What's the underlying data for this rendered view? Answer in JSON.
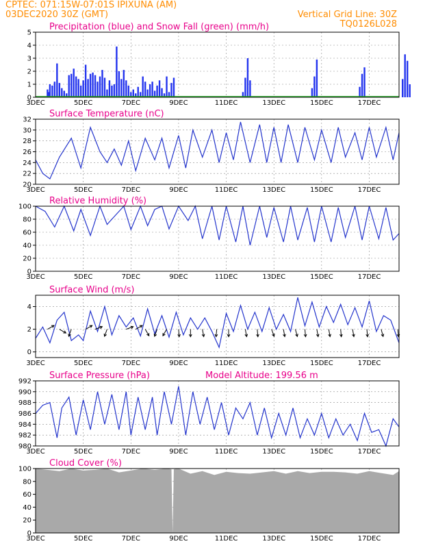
{
  "header": {
    "line1_left": "CPTEC:   071:15W-07:01S   IPIXUNA (AM)",
    "line2_left": "03DEC2020 30Z (GMT)",
    "line2_right": "Vertical Grid Line: 30Z",
    "line3_right": "TQ0126L028"
  },
  "colors": {
    "header": "#ff8c00",
    "title": "#e8008a",
    "line": "#2233cc",
    "precip": "#2233ee",
    "snow": "#22aa22",
    "cloud": "#a9a9a9",
    "arrow": "#000000"
  },
  "x_axis": {
    "ticks": [
      "3DEC",
      "5DEC",
      "7DEC",
      "9DEC",
      "11DEC",
      "13DEC",
      "15DEC",
      "17DEC"
    ],
    "tick_days": [
      0,
      2,
      4,
      6,
      8,
      10,
      12,
      14
    ],
    "year_label": "2020",
    "range_days": [
      0,
      15.25
    ]
  },
  "chart_data": [
    {
      "type": "bar",
      "title": "Precipitation (blue) and Snow Fall (green) (mm/h)",
      "ylim": [
        0,
        5
      ],
      "yticks": [
        0,
        1,
        2,
        3,
        4,
        5
      ],
      "series": [
        {
          "name": "Precipitation",
          "x": [
            0.5,
            0.55,
            0.6,
            0.7,
            0.8,
            0.9,
            1.0,
            1.1,
            1.2,
            1.3,
            1.4,
            1.5,
            1.6,
            1.7,
            1.8,
            1.9,
            2.0,
            2.1,
            2.2,
            2.3,
            2.4,
            2.5,
            2.6,
            2.7,
            2.8,
            2.9,
            3.0,
            3.1,
            3.2,
            3.3,
            3.4,
            3.5,
            3.6,
            3.7,
            3.8,
            3.9,
            4.0,
            4.1,
            4.2,
            4.3,
            4.4,
            4.5,
            4.6,
            4.7,
            4.8,
            4.9,
            5.0,
            5.1,
            5.2,
            5.3,
            5.4,
            5.5,
            5.6,
            5.7,
            5.8,
            8.7,
            8.8,
            8.9,
            9.0,
            11.6,
            11.7,
            11.8,
            13.6,
            13.7,
            13.8,
            15.4,
            15.5,
            15.6,
            15.7
          ],
          "values": [
            0.6,
            0.4,
            1.0,
            0.9,
            1.2,
            2.6,
            1.1,
            0.7,
            0.5,
            0.3,
            1.7,
            1.8,
            2.2,
            1.6,
            1.4,
            0.9,
            1.3,
            2.5,
            1.4,
            1.8,
            1.9,
            1.7,
            1.2,
            1.6,
            2.1,
            1.5,
            0.6,
            1.3,
            0.9,
            1.0,
            3.9,
            2.0,
            1.4,
            2.1,
            1.3,
            0.9,
            0.4,
            0.6,
            0.3,
            0.8,
            0.4,
            1.6,
            1.2,
            0.6,
            1.0,
            1.2,
            0.5,
            0.9,
            1.3,
            0.7,
            0.3,
            1.6,
            0.4,
            1.1,
            1.5,
            0.4,
            1.5,
            3.0,
            1.3,
            0.7,
            1.6,
            2.9,
            0.8,
            1.8,
            2.3,
            1.4,
            3.3,
            2.8,
            1.0
          ]
        },
        {
          "name": "Snow Fall",
          "x": [],
          "values": []
        }
      ]
    },
    {
      "type": "line",
      "title": "Surface Temperature (nC)",
      "ylim": [
        20,
        32
      ],
      "yticks": [
        20,
        22,
        24,
        26,
        28,
        30,
        32
      ],
      "series": [
        {
          "name": "Temperature",
          "x": [
            0,
            0.3,
            0.6,
            1.0,
            1.5,
            1.9,
            2.3,
            2.7,
            3.0,
            3.3,
            3.6,
            3.9,
            4.2,
            4.6,
            5.0,
            5.3,
            5.6,
            6.0,
            6.3,
            6.6,
            7.0,
            7.4,
            7.7,
            8.0,
            8.3,
            8.6,
            9.0,
            9.4,
            9.7,
            10.0,
            10.3,
            10.6,
            11.0,
            11.3,
            11.7,
            12.0,
            12.4,
            12.7,
            13.0,
            13.4,
            13.7,
            14.0,
            14.3,
            14.7,
            15.0,
            15.25
          ],
          "values": [
            24.5,
            22.0,
            21.0,
            25.0,
            28.5,
            23.0,
            30.5,
            26.0,
            24.0,
            26.5,
            23.5,
            28.0,
            22.5,
            28.5,
            24.5,
            28.5,
            23.0,
            29.0,
            23.0,
            30.0,
            25.0,
            30.0,
            24.0,
            29.5,
            24.5,
            31.5,
            24.0,
            31.0,
            24.0,
            30.5,
            24.0,
            31.0,
            24.0,
            30.5,
            24.5,
            30.0,
            24.0,
            30.5,
            25.0,
            29.5,
            24.5,
            30.5,
            25.0,
            30.5,
            24.5,
            29.5
          ]
        }
      ]
    },
    {
      "type": "line",
      "title": "Relative Humidity (%)",
      "ylim": [
        0,
        100
      ],
      "yticks": [
        0,
        20,
        40,
        60,
        80,
        100
      ],
      "series": [
        {
          "name": "Relative Humidity",
          "x": [
            0,
            0.4,
            0.8,
            1.2,
            1.6,
            1.9,
            2.3,
            2.7,
            3.0,
            3.4,
            3.7,
            4.0,
            4.4,
            4.7,
            5.0,
            5.3,
            5.6,
            6.0,
            6.4,
            6.7,
            7.0,
            7.4,
            7.7,
            8.0,
            8.4,
            8.7,
            9.0,
            9.4,
            9.7,
            10.0,
            10.4,
            10.7,
            11.0,
            11.4,
            11.7,
            12.0,
            12.4,
            12.7,
            13.0,
            13.4,
            13.7,
            14.0,
            14.4,
            14.7,
            15.0,
            15.25
          ],
          "values": [
            100,
            92,
            68,
            100,
            62,
            95,
            55,
            100,
            72,
            88,
            100,
            64,
            100,
            70,
            95,
            100,
            65,
            100,
            78,
            100,
            50,
            100,
            48,
            100,
            45,
            100,
            40,
            100,
            52,
            98,
            45,
            100,
            48,
            98,
            45,
            100,
            45,
            98,
            52,
            100,
            48,
            100,
            50,
            98,
            48,
            58
          ]
        }
      ]
    },
    {
      "type": "line",
      "title": "Surface Wind (m/s)",
      "ylim": [
        -0.5,
        5
      ],
      "yticks": [
        0,
        2,
        4
      ],
      "series": [
        {
          "name": "Wind Speed",
          "x": [
            0,
            0.3,
            0.6,
            0.9,
            1.2,
            1.5,
            1.8,
            2.0,
            2.3,
            2.6,
            2.9,
            3.2,
            3.5,
            3.8,
            4.1,
            4.4,
            4.7,
            5.0,
            5.3,
            5.6,
            5.9,
            6.2,
            6.5,
            6.8,
            7.1,
            7.4,
            7.7,
            8.0,
            8.3,
            8.6,
            8.9,
            9.2,
            9.5,
            9.8,
            10.1,
            10.4,
            10.7,
            11.0,
            11.3,
            11.6,
            11.9,
            12.2,
            12.5,
            12.8,
            13.1,
            13.4,
            13.7,
            14.0,
            14.3,
            14.6,
            14.9,
            15.25
          ],
          "values": [
            1.2,
            2.2,
            0.8,
            2.8,
            3.5,
            1.0,
            1.5,
            1.0,
            3.6,
            1.8,
            4.0,
            1.5,
            3.2,
            2.2,
            3.0,
            1.4,
            3.8,
            1.6,
            3.2,
            1.3,
            3.5,
            1.5,
            3.0,
            2.0,
            3.0,
            1.8,
            0.4,
            3.4,
            1.8,
            4.1,
            2.0,
            3.5,
            1.8,
            3.9,
            2.0,
            3.3,
            1.8,
            4.8,
            2.3,
            4.4,
            2.2,
            4.0,
            2.6,
            4.2,
            2.4,
            3.9,
            2.2,
            4.5,
            1.8,
            3.2,
            2.8,
            0.8
          ]
        }
      ],
      "vectors_note": "",
      "vectors": [
        {
          "x": 0.5,
          "dir": 60
        },
        {
          "x": 1.0,
          "dir": 120
        },
        {
          "x": 1.5,
          "dir": 200
        },
        {
          "x": 2.1,
          "dir": 60
        },
        {
          "x": 2.5,
          "dir": 70
        },
        {
          "x": 3.0,
          "dir": 200
        },
        {
          "x": 3.8,
          "dir": 70
        },
        {
          "x": 4.2,
          "dir": 60
        },
        {
          "x": 4.6,
          "dir": 150
        },
        {
          "x": 5.1,
          "dir": 200
        },
        {
          "x": 5.5,
          "dir": 210
        },
        {
          "x": 6.0,
          "dir": 175
        },
        {
          "x": 6.5,
          "dir": 180
        },
        {
          "x": 7.0,
          "dir": 170
        },
        {
          "x": 7.6,
          "dir": 185
        },
        {
          "x": 8.1,
          "dir": 180
        },
        {
          "x": 8.8,
          "dir": 170
        },
        {
          "x": 9.3,
          "dir": 175
        },
        {
          "x": 9.9,
          "dir": 160
        },
        {
          "x": 10.4,
          "dir": 170
        },
        {
          "x": 10.9,
          "dir": 165
        },
        {
          "x": 11.3,
          "dir": 175
        },
        {
          "x": 11.8,
          "dir": 170
        },
        {
          "x": 12.3,
          "dir": 170
        },
        {
          "x": 12.8,
          "dir": 175
        },
        {
          "x": 13.3,
          "dir": 170
        },
        {
          "x": 13.9,
          "dir": 175
        },
        {
          "x": 14.5,
          "dir": 165
        },
        {
          "x": 15.2,
          "dir": 175
        }
      ]
    },
    {
      "type": "line",
      "title": "Surface Pressure (hPa)",
      "annotation": "Model Altitude: 199.56 m",
      "ylim": [
        980,
        992
      ],
      "yticks": [
        980,
        982,
        984,
        986,
        988,
        990,
        992
      ],
      "series": [
        {
          "name": "Pressure",
          "x": [
            0,
            0.3,
            0.6,
            0.9,
            1.1,
            1.4,
            1.7,
            2.0,
            2.3,
            2.6,
            2.9,
            3.2,
            3.5,
            3.8,
            4.0,
            4.3,
            4.6,
            4.9,
            5.1,
            5.4,
            5.7,
            6.0,
            6.3,
            6.6,
            6.9,
            7.2,
            7.5,
            7.8,
            8.1,
            8.4,
            8.7,
            9.0,
            9.3,
            9.6,
            9.9,
            10.2,
            10.5,
            10.8,
            11.1,
            11.4,
            11.7,
            12.0,
            12.3,
            12.6,
            12.9,
            13.2,
            13.5,
            13.8,
            14.1,
            14.4,
            14.7,
            15.0,
            15.25
          ],
          "values": [
            986,
            987.5,
            988,
            981.5,
            987,
            989,
            982,
            988.5,
            983,
            990,
            984,
            989.5,
            983,
            990,
            982,
            989,
            983,
            989,
            982,
            990,
            984,
            991,
            982,
            990,
            984,
            989,
            983,
            988,
            982,
            987,
            985,
            988,
            982,
            987,
            981.5,
            986,
            982,
            987,
            981.5,
            985,
            982,
            986,
            981.5,
            985,
            982,
            984,
            981,
            986,
            982.5,
            983,
            980,
            985,
            983.5
          ]
        }
      ]
    },
    {
      "type": "area",
      "title": "Cloud Cover (%)",
      "ylim": [
        0,
        100
      ],
      "yticks": [
        0,
        20,
        40,
        60,
        80,
        100
      ],
      "series": [
        {
          "name": "Cloud Cover",
          "x": [
            0,
            0.5,
            1.0,
            1.5,
            2.0,
            2.5,
            3.0,
            3.5,
            4.0,
            4.5,
            5.0,
            5.5,
            5.7,
            5.75,
            5.8,
            6.0,
            6.5,
            7.0,
            7.5,
            8.0,
            8.5,
            9.0,
            9.5,
            10.0,
            10.5,
            11.0,
            11.5,
            12.0,
            12.5,
            13.0,
            13.5,
            14.0,
            14.5,
            15.0,
            15.25
          ],
          "values": [
            100,
            98,
            96,
            100,
            97,
            98,
            100,
            94,
            97,
            100,
            98,
            100,
            99,
            0,
            99,
            100,
            92,
            96,
            90,
            95,
            93,
            92,
            94,
            96,
            92,
            96,
            93,
            95,
            95,
            94,
            92,
            96,
            93,
            90,
            96
          ]
        }
      ]
    }
  ]
}
